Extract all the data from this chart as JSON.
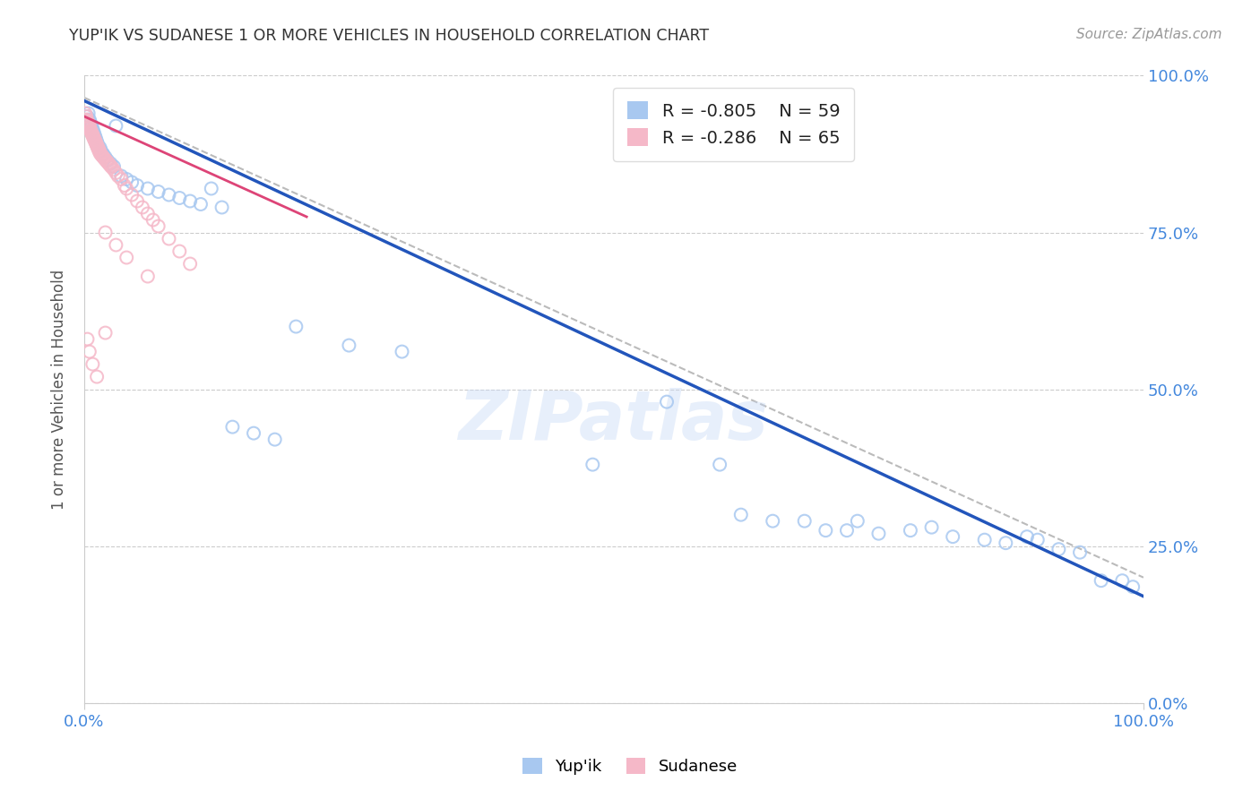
{
  "title": "YUP'IK VS SUDANESE 1 OR MORE VEHICLES IN HOUSEHOLD CORRELATION CHART",
  "source": "Source: ZipAtlas.com",
  "ylabel": "1 or more Vehicles in Household",
  "watermark": "ZIPatlas",
  "xlim": [
    0.0,
    1.0
  ],
  "ylim": [
    0.0,
    1.0
  ],
  "ytick_labels": [
    "0.0%",
    "25.0%",
    "50.0%",
    "75.0%",
    "100.0%"
  ],
  "ytick_positions": [
    0.0,
    0.25,
    0.5,
    0.75,
    1.0
  ],
  "legend_r_blue": "R = -0.805",
  "legend_n_blue": "N = 59",
  "legend_r_pink": "R = -0.286",
  "legend_n_pink": "N = 65",
  "blue_color": "#a8c8f0",
  "pink_color": "#f5b8c8",
  "line_blue": "#2255bb",
  "line_pink": "#dd4477",
  "dashed_color": "#bbbbbb",
  "grid_color": "#cccccc",
  "title_color": "#333333",
  "source_color": "#999999",
  "axis_label_color": "#555555",
  "tick_color_right": "#4488dd",
  "tick_color_bottom": "#4488dd",
  "blue_line_x": [
    0.0,
    1.0
  ],
  "blue_line_y": [
    0.96,
    0.17
  ],
  "pink_line_x": [
    0.0,
    0.21
  ],
  "pink_line_y": [
    0.935,
    0.775
  ],
  "dashed_line_x": [
    0.0,
    1.0
  ],
  "dashed_line_y": [
    0.965,
    0.2
  ],
  "blue_scatter_x": [
    0.003,
    0.004,
    0.005,
    0.006,
    0.007,
    0.008,
    0.009,
    0.01,
    0.011,
    0.012,
    0.013,
    0.015,
    0.016,
    0.018,
    0.02,
    0.022,
    0.025,
    0.028,
    0.03,
    0.035,
    0.04,
    0.045,
    0.05,
    0.06,
    0.07,
    0.08,
    0.09,
    0.1,
    0.11,
    0.12,
    0.13,
    0.14,
    0.16,
    0.18,
    0.2,
    0.25,
    0.3,
    0.48,
    0.55,
    0.6,
    0.62,
    0.65,
    0.68,
    0.7,
    0.72,
    0.73,
    0.75,
    0.78,
    0.8,
    0.82,
    0.85,
    0.87,
    0.89,
    0.9,
    0.92,
    0.94,
    0.96,
    0.98,
    0.99
  ],
  "blue_scatter_y": [
    0.935,
    0.94,
    0.93,
    0.925,
    0.92,
    0.915,
    0.91,
    0.905,
    0.9,
    0.895,
    0.89,
    0.885,
    0.88,
    0.875,
    0.87,
    0.865,
    0.86,
    0.855,
    0.92,
    0.84,
    0.835,
    0.83,
    0.825,
    0.82,
    0.815,
    0.81,
    0.805,
    0.8,
    0.795,
    0.82,
    0.79,
    0.44,
    0.43,
    0.42,
    0.6,
    0.57,
    0.56,
    0.38,
    0.48,
    0.38,
    0.3,
    0.29,
    0.29,
    0.275,
    0.275,
    0.29,
    0.27,
    0.275,
    0.28,
    0.265,
    0.26,
    0.255,
    0.265,
    0.26,
    0.245,
    0.24,
    0.195,
    0.195,
    0.185
  ],
  "pink_scatter_x": [
    0.001,
    0.002,
    0.002,
    0.003,
    0.003,
    0.004,
    0.004,
    0.005,
    0.005,
    0.005,
    0.006,
    0.006,
    0.007,
    0.007,
    0.008,
    0.008,
    0.009,
    0.009,
    0.01,
    0.01,
    0.011,
    0.011,
    0.012,
    0.012,
    0.013,
    0.013,
    0.014,
    0.014,
    0.015,
    0.015,
    0.016,
    0.017,
    0.018,
    0.019,
    0.02,
    0.021,
    0.022,
    0.023,
    0.024,
    0.025,
    0.026,
    0.028,
    0.03,
    0.032,
    0.035,
    0.038,
    0.04,
    0.045,
    0.05,
    0.055,
    0.06,
    0.065,
    0.07,
    0.08,
    0.09,
    0.1,
    0.02,
    0.03,
    0.04,
    0.06,
    0.003,
    0.005,
    0.008,
    0.012,
    0.02
  ],
  "pink_scatter_y": [
    0.94,
    0.935,
    0.93,
    0.928,
    0.926,
    0.924,
    0.922,
    0.92,
    0.918,
    0.916,
    0.914,
    0.912,
    0.91,
    0.908,
    0.906,
    0.904,
    0.902,
    0.9,
    0.898,
    0.896,
    0.894,
    0.892,
    0.89,
    0.888,
    0.886,
    0.884,
    0.882,
    0.88,
    0.878,
    0.876,
    0.874,
    0.872,
    0.87,
    0.868,
    0.866,
    0.864,
    0.862,
    0.86,
    0.858,
    0.856,
    0.854,
    0.85,
    0.845,
    0.84,
    0.835,
    0.825,
    0.82,
    0.81,
    0.8,
    0.79,
    0.78,
    0.77,
    0.76,
    0.74,
    0.72,
    0.7,
    0.75,
    0.73,
    0.71,
    0.68,
    0.58,
    0.56,
    0.54,
    0.52,
    0.59
  ],
  "background_color": "#ffffff"
}
